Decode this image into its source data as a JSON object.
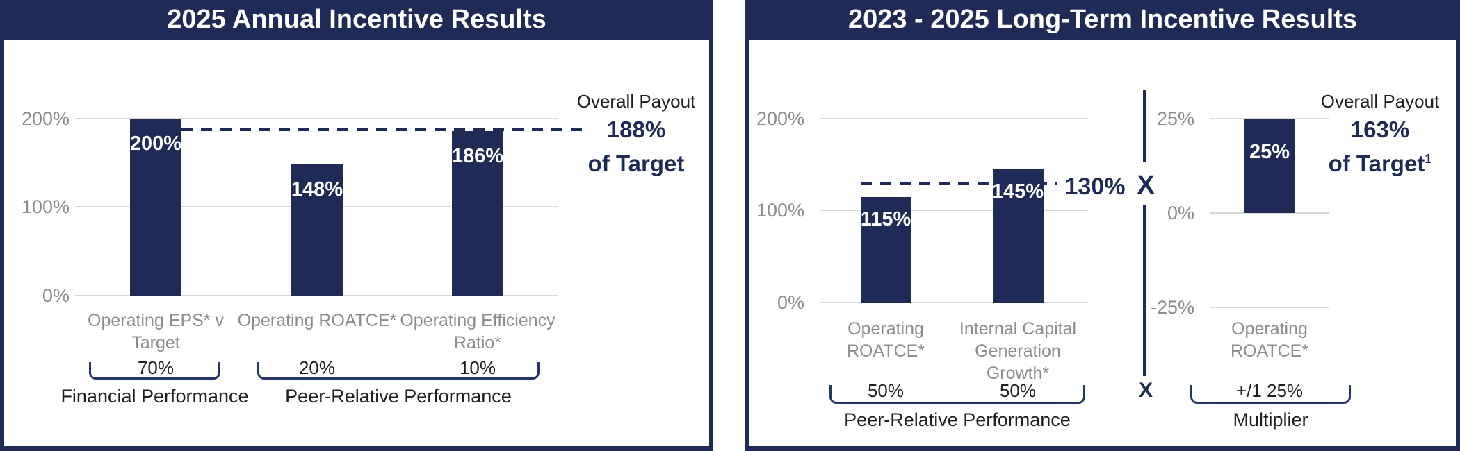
{
  "colors": {
    "navy": "#1F2A56",
    "bracket_navy": "#263568",
    "gridline": "#D8D8D8",
    "axis_label_gray": "#8C8C8C",
    "text_black": "#1F1F1F",
    "bar_value_white": "#FFFFFF"
  },
  "annual": {
    "title": "2025 Annual Incentive Results",
    "y_ticks": [
      "200%",
      "100%",
      "0%"
    ],
    "bars": [
      {
        "value": 200,
        "label": "200%",
        "category": [
          "Operating EPS* v",
          "Target"
        ],
        "weight": "70%"
      },
      {
        "value": 148,
        "label": "148%",
        "category": [
          "Operating ROATCE*"
        ],
        "weight": "20%"
      },
      {
        "value": 186,
        "label": "186%",
        "category": [
          "Operating Efficiency",
          "Ratio*"
        ],
        "weight": "10%"
      }
    ],
    "dashed_value": 188,
    "payout": {
      "heading": "Overall Payout",
      "value": "188%",
      "line2": "of Target",
      "superscript": ""
    },
    "groups": [
      {
        "label": "Financial Performance"
      },
      {
        "label": "Peer-Relative Performance"
      }
    ]
  },
  "lti": {
    "title": "2023 - 2025 Long-Term Incentive Results",
    "main": {
      "y_ticks": [
        "200%",
        "100%",
        "0%"
      ],
      "bars": [
        {
          "value": 115,
          "label": "115%",
          "category": [
            "Operating",
            "ROATCE*"
          ],
          "weight": "50%"
        },
        {
          "value": 145,
          "label": "145%",
          "category": [
            "Internal Capital",
            "Generation",
            "Growth*"
          ],
          "weight": "50%"
        }
      ],
      "dashed_value": 130,
      "dashed_label": "130%",
      "group_label": "Peer-Relative Performance"
    },
    "multiply_symbol": "X",
    "multiply_symbol_bottom": "X",
    "multiplier": {
      "y_ticks": [
        "25%",
        "0%",
        "-25%"
      ],
      "bars": [
        {
          "value": 25,
          "label": "25%",
          "category": [
            "Operating",
            "ROATCE*"
          ],
          "weight": "+/1 25%"
        }
      ],
      "group_label": "Multiplier"
    },
    "payout": {
      "heading": "Overall Payout",
      "value": "163%",
      "line2": "of Target",
      "superscript": "1"
    }
  },
  "chart_data": [
    {
      "type": "bar",
      "title": "2025 Annual Incentive Results",
      "categories": [
        "Operating EPS* v Target",
        "Operating ROATCE*",
        "Operating Efficiency Ratio*"
      ],
      "values": [
        200,
        148,
        186
      ],
      "bar_labels": [
        "200%",
        "148%",
        "186%"
      ],
      "weights": [
        "70%",
        "20%",
        "10%"
      ],
      "yticks": [
        "0%",
        "100%",
        "200%"
      ],
      "ylim": [
        0,
        230
      ],
      "grid": true,
      "bar_color": "#1F2A56",
      "reference_line": {
        "value": 188,
        "style": "dashed",
        "label": "Overall Payout 188% of Target"
      },
      "groups": [
        {
          "label": "Financial Performance",
          "categories": [
            "Operating EPS* v Target"
          ]
        },
        {
          "label": "Peer-Relative Performance",
          "categories": [
            "Operating ROATCE*",
            "Operating Efficiency Ratio*"
          ]
        }
      ]
    },
    {
      "type": "bar",
      "title": "2023 - 2025 Long-Term Incentive Results",
      "subcharts": [
        {
          "categories": [
            "Operating ROATCE*",
            "Internal Capital Generation Growth*"
          ],
          "values": [
            115,
            145
          ],
          "bar_labels": [
            "115%",
            "145%"
          ],
          "weights": [
            "50%",
            "50%"
          ],
          "yticks": [
            "0%",
            "100%",
            "200%"
          ],
          "ylim": [
            0,
            230
          ],
          "reference_line": {
            "value": 130,
            "style": "dashed",
            "label": "130%"
          },
          "group_label": "Peer-Relative Performance"
        },
        {
          "categories": [
            "Operating ROATCE*"
          ],
          "values": [
            25
          ],
          "bar_labels": [
            "25%"
          ],
          "weights": [
            "+/1 25%"
          ],
          "yticks": [
            "-25%",
            "0%",
            "25%"
          ],
          "ylim": [
            -30,
            30
          ],
          "group_label": "Multiplier"
        }
      ],
      "operator_between_subcharts": "X",
      "annotation": "Overall Payout 163% of Target¹"
    }
  ]
}
